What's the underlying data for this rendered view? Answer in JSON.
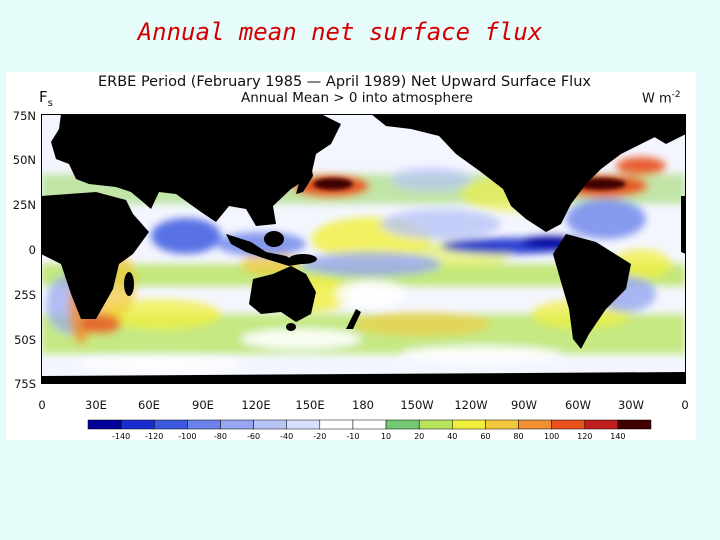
{
  "slide": {
    "title": "Annual mean net surface flux"
  },
  "figure": {
    "title_line1": "ERBE Period (February 1985 — April 1989) Net Upward Surface Flux",
    "title_line2": "Annual Mean   > 0 into atmosphere",
    "variable_symbol": "F",
    "variable_subscript": "s",
    "units": "W m",
    "units_exp": "-2",
    "lat_labels": [
      "75N",
      "50N",
      "25N",
      "0",
      "25S",
      "50S",
      "75S"
    ],
    "lon_labels": [
      "0",
      "30E",
      "60E",
      "90E",
      "120E",
      "150E",
      "180",
      "150W",
      "120W",
      "90W",
      "60W",
      "30W",
      "0"
    ]
  },
  "colorbar": {
    "labels": [
      "-140",
      "-120",
      "-100",
      "-80",
      "-60",
      "-40",
      "-20",
      "-10",
      "10",
      "20",
      "40",
      "60",
      "80",
      "100",
      "120",
      "140"
    ],
    "colors": [
      "#00009a",
      "#1a2ccf",
      "#3c5ae0",
      "#6a82ea",
      "#96a6f0",
      "#b8c4f6",
      "#d8dffb",
      "#ffffff",
      "#ffffff",
      "#73c873",
      "#b6e45a",
      "#f0f03c",
      "#f4c83c",
      "#f09030",
      "#e8501e",
      "#c01e1e",
      "#400000"
    ]
  }
}
